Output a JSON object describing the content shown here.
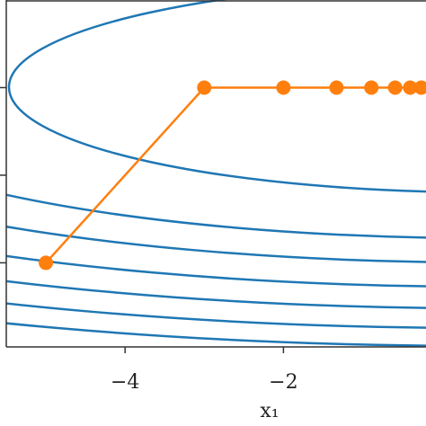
{
  "chart_data": {
    "type": "line",
    "x_label": "x₁",
    "series": [
      {
        "color": "#ff7f0e",
        "x": [
          -5,
          -3,
          -2,
          -1.33,
          -0.89,
          -0.59,
          -0.4,
          -0.26
        ],
        "values": [
          -2,
          0,
          0,
          0,
          0,
          0,
          0,
          0
        ]
      }
    ],
    "contour_color": "#1f77b4",
    "xlim": [
      -5.5,
      -0.2
    ],
    "ylim": [
      -2.96,
      1.0
    ],
    "xticks": [
      {
        "value": -4,
        "label": "−4"
      },
      {
        "value": -2,
        "label": "−2"
      }
    ],
    "yticks": [
      0,
      -1,
      -2
    ]
  }
}
